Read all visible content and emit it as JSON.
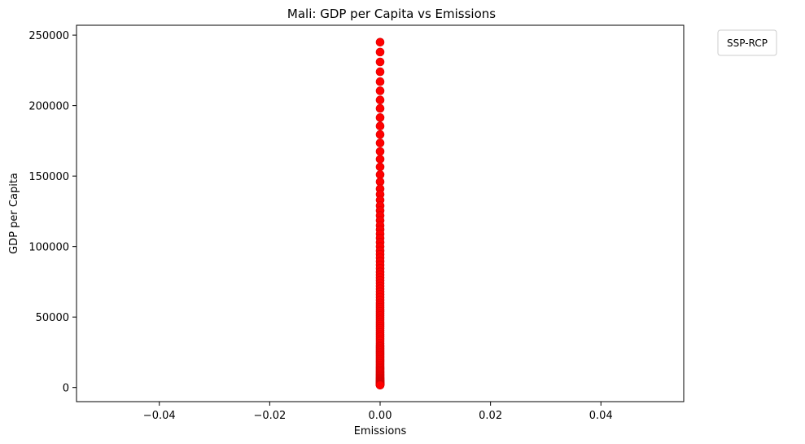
{
  "chart_data": {
    "type": "scatter",
    "title": "Mali: GDP per Capita vs Emissions",
    "xlabel": "Emissions",
    "ylabel": "GDP per Capita",
    "xlim": [
      -0.055,
      0.055
    ],
    "ylim": [
      -10000,
      257000
    ],
    "xticks": [
      -0.04,
      -0.02,
      0.0,
      0.02,
      0.04
    ],
    "xtick_labels": [
      "−0.04",
      "−0.02",
      "0.00",
      "0.02",
      "0.04"
    ],
    "yticks": [
      0,
      50000,
      100000,
      150000,
      200000,
      250000
    ],
    "ytick_labels": [
      "0",
      "50000",
      "100000",
      "150000",
      "200000",
      "250000"
    ],
    "grid": false,
    "legend": {
      "title": "SSP-RCP",
      "placement": "outside-top-right"
    },
    "marker_color": "#ff0000",
    "marker_edge_color": "#d40000",
    "x": [
      0,
      0,
      0,
      0,
      0,
      0,
      0,
      0,
      0,
      0,
      0,
      0,
      0,
      0,
      0,
      0,
      0,
      0,
      0,
      0,
      0,
      0,
      0,
      0,
      0,
      0,
      0,
      0,
      0,
      0,
      0,
      0,
      0,
      0,
      0,
      0,
      0,
      0,
      0,
      0,
      0,
      0,
      0,
      0,
      0,
      0,
      0,
      0,
      0,
      0,
      0,
      0,
      0,
      0,
      0,
      0,
      0,
      0,
      0,
      0,
      0,
      0,
      0,
      0,
      0,
      0,
      0,
      0,
      0,
      0,
      0,
      0,
      0,
      0,
      0,
      0,
      0,
      0,
      0,
      0,
      0,
      0,
      0,
      0,
      0,
      0,
      0,
      0,
      0,
      0,
      0,
      0,
      0,
      0,
      0,
      0,
      0,
      0,
      0,
      0,
      0,
      0,
      0,
      0,
      0,
      0,
      0,
      0,
      0,
      0,
      0,
      0,
      0
    ],
    "y": [
      245000,
      238000,
      231000,
      224000,
      217000,
      210500,
      204000,
      198000,
      191500,
      185500,
      179500,
      173500,
      167500,
      162000,
      156500,
      151000,
      146000,
      141000,
      137000,
      133000,
      129000,
      125500,
      122000,
      118500,
      115000,
      112000,
      109000,
      106000,
      103000,
      100000,
      97000,
      94500,
      92000,
      89500,
      87000,
      84500,
      82000,
      80000,
      78000,
      76000,
      74000,
      72000,
      70000,
      68000,
      66000,
      64000,
      62000,
      60000,
      58500,
      57000,
      55500,
      54000,
      52500,
      51000,
      49500,
      48000,
      46500,
      45000,
      43500,
      42000,
      40500,
      39000,
      37500,
      36000,
      34500,
      33000,
      31500,
      30000,
      29000,
      28000,
      27000,
      26000,
      25000,
      24000,
      23000,
      22000,
      21000,
      20000,
      19000,
      18000,
      17000,
      16000,
      15000,
      14200,
      13400,
      12600,
      11800,
      11000,
      10300,
      9600,
      9000,
      8400,
      7800,
      7200,
      6700,
      6200,
      5700,
      5300,
      4900,
      4500,
      4200,
      3900,
      3600,
      3300,
      3000,
      2800,
      2600,
      2400,
      2200,
      2000,
      1900,
      1800,
      1700
    ]
  }
}
